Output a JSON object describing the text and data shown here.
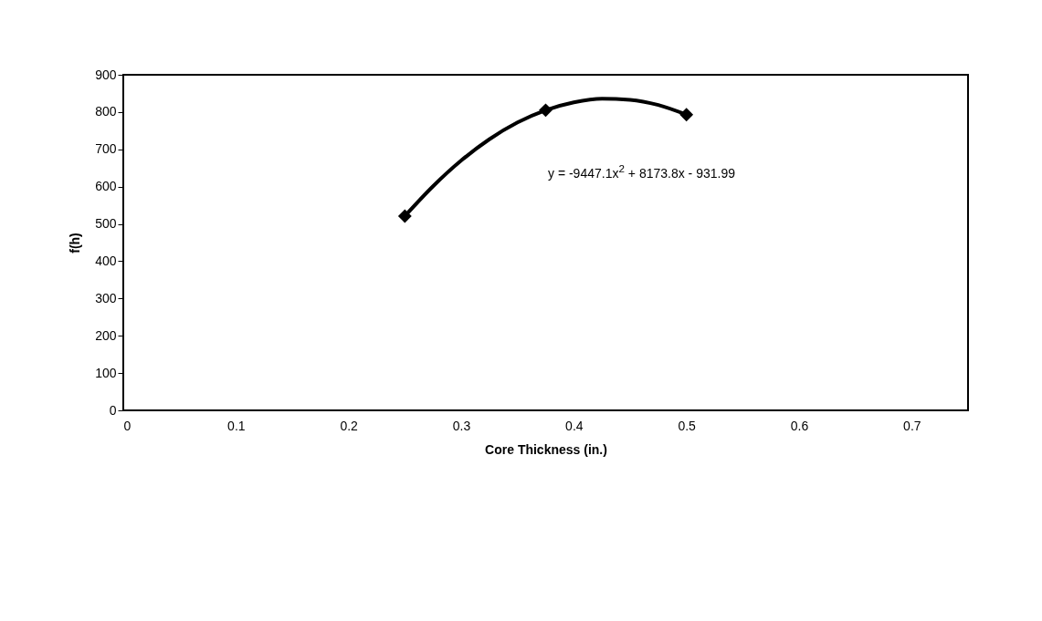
{
  "chart_data": {
    "type": "scatter",
    "xlabel": "Core Thickness (in.)",
    "ylabel": "f(h)",
    "xlim": [
      0,
      0.75
    ],
    "ylim": [
      0,
      900
    ],
    "xticks": [
      0,
      0.1,
      0.2,
      0.3,
      0.4,
      0.5,
      0.6,
      0.7
    ],
    "yticks": [
      0,
      100,
      200,
      300,
      400,
      500,
      600,
      700,
      800,
      900
    ],
    "grid": false,
    "marker": "diamond",
    "x": [
      0.25,
      0.375,
      0.5
    ],
    "series": [
      {
        "color": "#000000",
        "values": [
          521,
          805,
          793
        ]
      },
      {
        "type": "line",
        "color": "#000000",
        "line_style": "solid",
        "marker": "none",
        "x": [
          0.25,
          0.275,
          0.3,
          0.325,
          0.35,
          0.375,
          0.4,
          0.425,
          0.45,
          0.475,
          0.5
        ],
        "values": [
          521,
          601,
          670,
          727,
          772,
          805,
          826,
          836,
          833,
          819,
          793
        ]
      }
    ],
    "annotations": [
      "y = -9447.1x$^{2}$ + 8173.8x - 931.99"
    ]
  }
}
